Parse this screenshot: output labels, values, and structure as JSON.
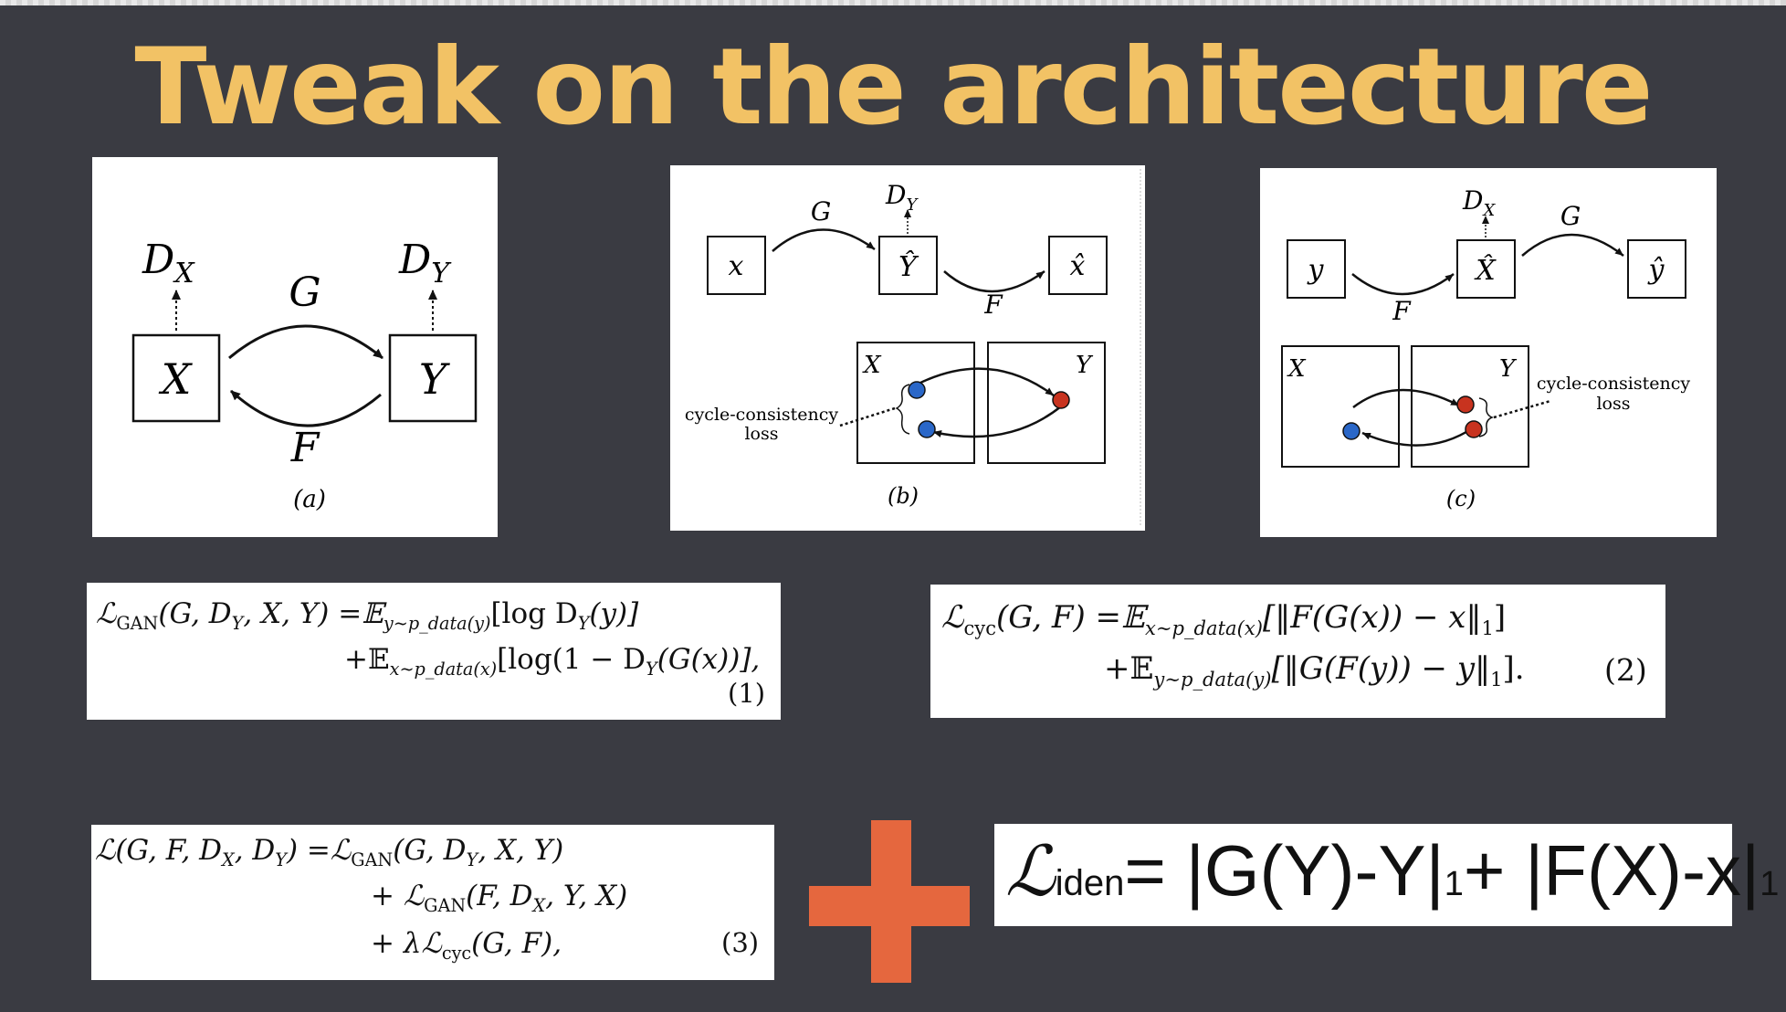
{
  "title": "Tweak on the architecture",
  "diagram_a": {
    "node_x": "X",
    "node_y": "Y",
    "disc_x": "D",
    "disc_x_sub": "X",
    "disc_y": "D",
    "disc_y_sub": "Y",
    "edge_g": "G",
    "edge_f": "F",
    "caption": "(a)"
  },
  "diagram_b": {
    "node_x": "x",
    "node_yhat": "Ŷ",
    "node_xhat": "x̂",
    "disc": "D",
    "disc_sub": "Y",
    "edge_g": "G",
    "edge_f": "F",
    "domain_x": "X",
    "domain_y": "Y",
    "loss_line1": "cycle-consistency",
    "loss_line2": "loss",
    "caption": "(b)"
  },
  "diagram_c": {
    "node_y": "y",
    "node_xhat": "X̂",
    "node_yhat": "ŷ",
    "disc": "D",
    "disc_sub": "X",
    "edge_g": "G",
    "edge_f": "F",
    "domain_x": "X",
    "domain_y": "Y",
    "loss_line1": "cycle-consistency",
    "loss_line2": "loss",
    "caption": "(c)"
  },
  "eq1": {
    "line1_lhs": "ℒ",
    "line1_lhs_sub": "GAN",
    "line1_args": "(G, D",
    "line1_args_sub": "Y",
    "line1_args2": ", X, Y) =𝔼",
    "line1_exp_sub": "y∼p_data(y)",
    "line1_rhs": "[log D",
    "line1_rhs_sub": "Y",
    "line1_rhs2": "(y)]",
    "line2_pre": "+𝔼",
    "line2_exp_sub": "x∼p_data(x)",
    "line2_rhs": "[log(1 − D",
    "line2_rhs_sub": "Y",
    "line2_rhs2": "(G(x))],",
    "number": "(1)"
  },
  "eq2": {
    "line1_lhs": "ℒ",
    "line1_lhs_sub": "cyc",
    "line1_args": "(G, F) =𝔼",
    "line1_exp_sub": "x∼p_data(x)",
    "line1_rhs": "[‖F(G(x)) − x‖",
    "line1_rhs_sub": "1",
    "line1_rhs2": "]",
    "line2_pre": "+𝔼",
    "line2_exp_sub": "y∼p_data(y)",
    "line2_rhs": "[‖G(F(y)) − y‖",
    "line2_rhs_sub": "1",
    "line2_rhs2": "].",
    "number": "(2)"
  },
  "eq3": {
    "line1_a": "ℒ(G, F, D",
    "line1_a_sub": "X",
    "line1_b": ", D",
    "line1_b_sub": "Y",
    "line1_c": ") =ℒ",
    "line1_c_sub": "GAN",
    "line1_d": "(G, D",
    "line1_d_sub": "Y",
    "line1_e": ", X, Y)",
    "line2_a": "+ ℒ",
    "line2_a_sub": "GAN",
    "line2_b": "(F, D",
    "line2_b_sub": "X",
    "line2_c": ", Y, X)",
    "line3_a": "+ λℒ",
    "line3_a_sub": "cyc",
    "line3_b": "(G, F),",
    "number": "(3)"
  },
  "identity": {
    "L": "ℒ",
    "sub": "iden",
    "part1": "= |G(Y)-Y|",
    "one1": "1",
    "part2": "+ |F(X)-x|",
    "one2": "1"
  },
  "colors": {
    "title": "#f2c265",
    "background": "#3a3b42",
    "plus": "#e5673e",
    "blue_dot": "#2a67c8",
    "red_dot": "#c8331f"
  }
}
